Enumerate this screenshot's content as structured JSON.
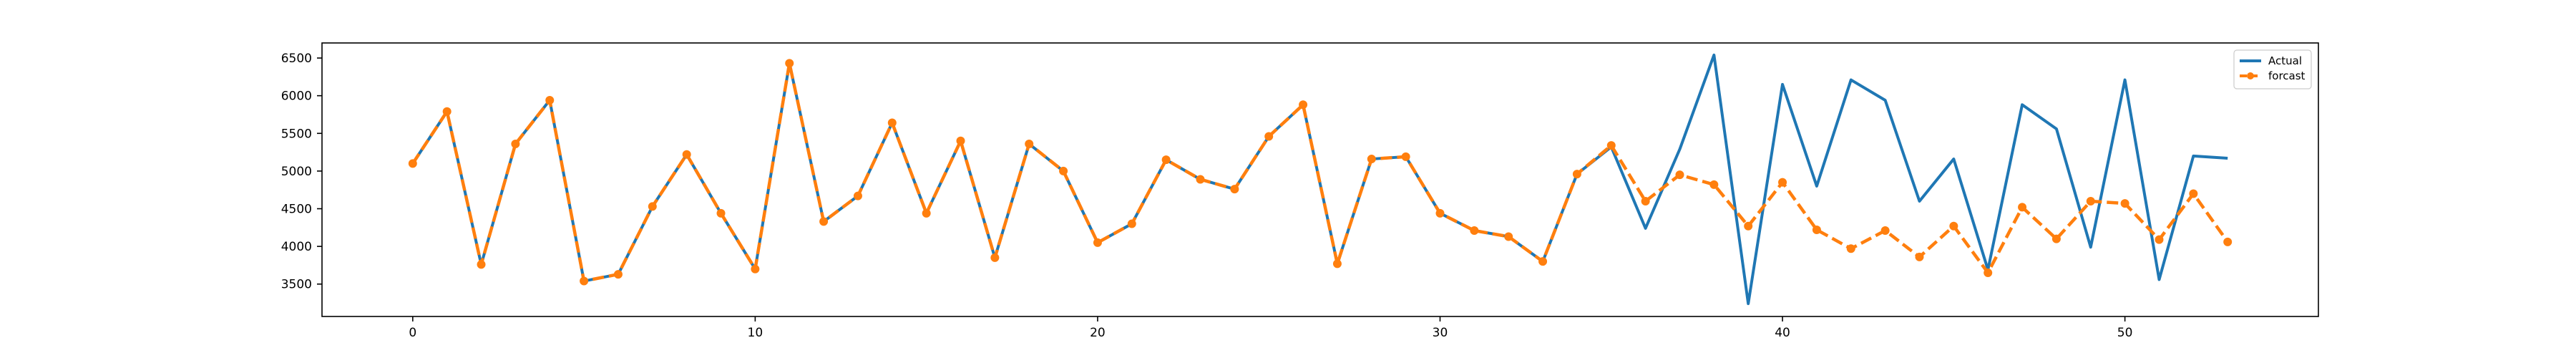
{
  "chart_data": {
    "type": "line",
    "title": "",
    "xlabel": "",
    "ylabel": "",
    "xlim": [
      -2.65,
      55.65
    ],
    "ylim": [
      3070,
      6700
    ],
    "xticks": [
      0,
      10,
      20,
      30,
      40,
      50
    ],
    "yticks": [
      3500,
      4000,
      4500,
      5000,
      5500,
      6000,
      6500
    ],
    "grid": false,
    "legend_position": "top-right",
    "x": [
      0,
      1,
      2,
      3,
      4,
      5,
      6,
      7,
      8,
      9,
      10,
      11,
      12,
      13,
      14,
      15,
      16,
      17,
      18,
      19,
      20,
      21,
      22,
      23,
      24,
      25,
      26,
      27,
      28,
      29,
      30,
      31,
      32,
      33,
      34,
      35,
      36,
      37,
      38,
      39,
      40,
      41,
      42,
      43,
      44,
      45,
      46,
      47,
      48,
      49,
      50,
      51,
      52,
      53
    ],
    "series": [
      {
        "name": "Actual",
        "color": "#1f77b4",
        "style": "solid",
        "marker": "none",
        "values": [
          5100,
          5790,
          3760,
          5360,
          5940,
          3540,
          3630,
          4530,
          5220,
          4440,
          3700,
          6430,
          4330,
          4670,
          5640,
          4440,
          5400,
          3850,
          5360,
          5000,
          4050,
          4300,
          5150,
          4890,
          4760,
          5460,
          5880,
          3770,
          5160,
          5190,
          4440,
          4210,
          4130,
          3800,
          4960,
          5320,
          4240,
          5290,
          6540,
          3240,
          6150,
          4800,
          6210,
          5940,
          4600,
          5160,
          3690,
          5880,
          5560,
          3990,
          6210,
          3560,
          5200,
          5170
        ]
      },
      {
        "name": "forcast",
        "color": "#ff7f0e",
        "style": "dashed",
        "marker": "circle",
        "values": [
          5100,
          5790,
          3760,
          5360,
          5940,
          3540,
          3630,
          4530,
          5220,
          4440,
          3700,
          6430,
          4330,
          4670,
          5640,
          4440,
          5400,
          3850,
          5360,
          5000,
          4050,
          4300,
          5150,
          4890,
          4760,
          5460,
          5880,
          3770,
          5160,
          5190,
          4440,
          4210,
          4130,
          3800,
          4960,
          5340,
          4600,
          4950,
          4820,
          4270,
          4850,
          4220,
          3970,
          4210,
          3860,
          4270,
          3650,
          4520,
          4100,
          4600,
          4570,
          4090,
          4700,
          4060
        ]
      }
    ]
  }
}
